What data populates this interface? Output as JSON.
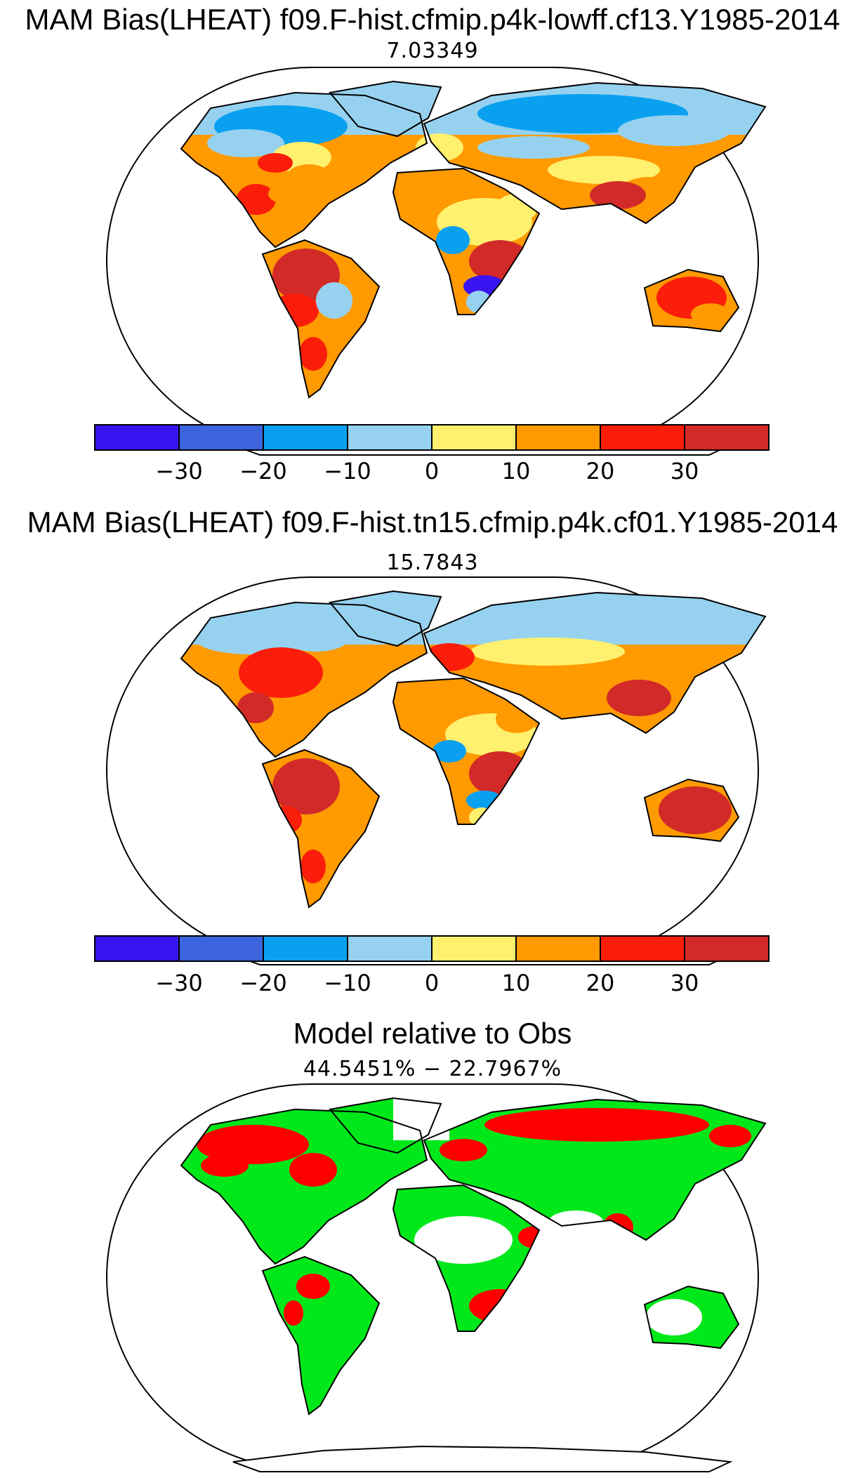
{
  "panels": [
    {
      "title": "MAM Bias(LHEAT) f09.F-hist.cfmip.p4k-lowff.cf13.Y1985-2014",
      "subtitle": "7.03349"
    },
    {
      "title": "MAM Bias(LHEAT) f09.F-hist.tn15.cfmip.p4k.cf01.Y1985-2014",
      "subtitle": "15.7843"
    },
    {
      "title": "Model relative to Obs",
      "subtitle": "44.5451% − 22.7967%"
    }
  ],
  "colorbar": {
    "colors": [
      "#3a14f0",
      "#3c64dc",
      "#0aa0f0",
      "#96d2f0",
      "#fff06e",
      "#ff9a00",
      "#fa1e0a",
      "#d22a28"
    ],
    "tick_labels": [
      "−30",
      "−20",
      "−10",
      "0",
      "10",
      "20",
      "30"
    ]
  },
  "comparison_colors": {
    "better": "#00e81a",
    "worse": "#ff0000"
  }
}
